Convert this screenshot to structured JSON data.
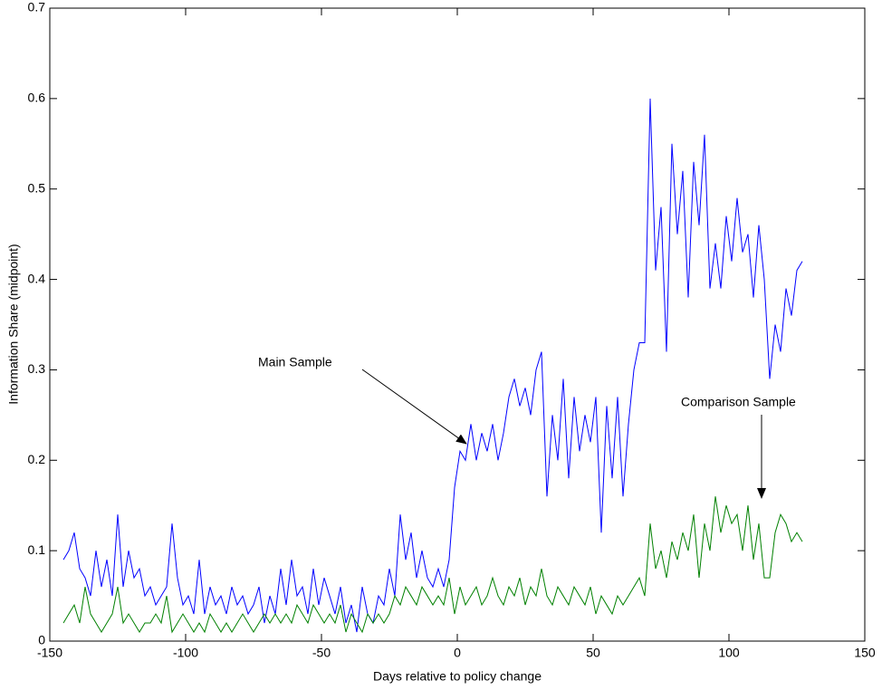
{
  "chart_data": {
    "type": "line",
    "xlabel": "Days relative to policy change",
    "ylabel": "Information Share (midpoint)",
    "annotations": [
      "Main Sample",
      "Comparison Sample"
    ],
    "x": [
      -145,
      -143,
      -141,
      -139,
      -137,
      -135,
      -133,
      -131,
      -129,
      -127,
      -125,
      -123,
      -121,
      -119,
      -117,
      -115,
      -113,
      -111,
      -109,
      -107,
      -105,
      -103,
      -101,
      -99,
      -97,
      -95,
      -93,
      -91,
      -89,
      -87,
      -85,
      -83,
      -81,
      -79,
      -77,
      -75,
      -73,
      -71,
      -69,
      -67,
      -65,
      -63,
      -61,
      -59,
      -57,
      -55,
      -53,
      -51,
      -49,
      -47,
      -45,
      -43,
      -41,
      -39,
      -37,
      -35,
      -33,
      -31,
      -29,
      -27,
      -25,
      -23,
      -21,
      -19,
      -17,
      -15,
      -13,
      -11,
      -9,
      -7,
      -5,
      -3,
      -1,
      1,
      3,
      5,
      7,
      9,
      11,
      13,
      15,
      17,
      19,
      21,
      23,
      25,
      27,
      29,
      31,
      33,
      35,
      37,
      39,
      41,
      43,
      45,
      47,
      49,
      51,
      53,
      55,
      57,
      59,
      61,
      63,
      65,
      67,
      69,
      71,
      73,
      75,
      77,
      79,
      81,
      83,
      85,
      87,
      89,
      91,
      93,
      95,
      97,
      99,
      101,
      103,
      105,
      107,
      109,
      111,
      113,
      115,
      117,
      119,
      121,
      123,
      125,
      127
    ],
    "series": [
      {
        "color": "#0000ff",
        "values": [
          0.09,
          0.1,
          0.12,
          0.08,
          0.07,
          0.05,
          0.1,
          0.06,
          0.09,
          0.05,
          0.14,
          0.06,
          0.1,
          0.07,
          0.08,
          0.05,
          0.06,
          0.04,
          0.05,
          0.06,
          0.13,
          0.07,
          0.04,
          0.05,
          0.03,
          0.09,
          0.03,
          0.06,
          0.04,
          0.05,
          0.03,
          0.06,
          0.04,
          0.05,
          0.03,
          0.04,
          0.06,
          0.02,
          0.05,
          0.03,
          0.08,
          0.04,
          0.09,
          0.05,
          0.06,
          0.03,
          0.08,
          0.04,
          0.07,
          0.05,
          0.03,
          0.06,
          0.02,
          0.04,
          0.01,
          0.06,
          0.03,
          0.02,
          0.05,
          0.04,
          0.08,
          0.05,
          0.14,
          0.09,
          0.12,
          0.07,
          0.1,
          0.07,
          0.06,
          0.08,
          0.06,
          0.09,
          0.17,
          0.21,
          0.2,
          0.24,
          0.2,
          0.23,
          0.21,
          0.24,
          0.2,
          0.23,
          0.27,
          0.29,
          0.26,
          0.28,
          0.25,
          0.3,
          0.32,
          0.16,
          0.25,
          0.2,
          0.29,
          0.18,
          0.27,
          0.21,
          0.25,
          0.22,
          0.27,
          0.12,
          0.26,
          0.18,
          0.27,
          0.16,
          0.24,
          0.3,
          0.33,
          0.33,
          0.6,
          0.41,
          0.48,
          0.32,
          0.55,
          0.45,
          0.52,
          0.38,
          0.53,
          0.46,
          0.56,
          0.39,
          0.44,
          0.39,
          0.47,
          0.42,
          0.49,
          0.43,
          0.45,
          0.38,
          0.46,
          0.4,
          0.29,
          0.35,
          0.32,
          0.39,
          0.36,
          0.41,
          0.42
        ]
      },
      {
        "color": "#008000",
        "values": [
          0.02,
          0.03,
          0.04,
          0.02,
          0.06,
          0.03,
          0.02,
          0.01,
          0.02,
          0.03,
          0.06,
          0.02,
          0.03,
          0.02,
          0.01,
          0.02,
          0.02,
          0.03,
          0.02,
          0.05,
          0.01,
          0.02,
          0.03,
          0.02,
          0.01,
          0.02,
          0.01,
          0.03,
          0.02,
          0.01,
          0.02,
          0.01,
          0.02,
          0.03,
          0.02,
          0.01,
          0.02,
          0.03,
          0.02,
          0.03,
          0.02,
          0.03,
          0.02,
          0.04,
          0.03,
          0.02,
          0.04,
          0.03,
          0.02,
          0.03,
          0.02,
          0.04,
          0.01,
          0.03,
          0.02,
          0.01,
          0.03,
          0.02,
          0.03,
          0.02,
          0.03,
          0.05,
          0.04,
          0.06,
          0.05,
          0.04,
          0.06,
          0.05,
          0.04,
          0.05,
          0.04,
          0.07,
          0.03,
          0.06,
          0.04,
          0.05,
          0.06,
          0.04,
          0.05,
          0.07,
          0.05,
          0.04,
          0.06,
          0.05,
          0.07,
          0.04,
          0.06,
          0.05,
          0.08,
          0.05,
          0.04,
          0.06,
          0.05,
          0.04,
          0.06,
          0.05,
          0.04,
          0.06,
          0.03,
          0.05,
          0.04,
          0.03,
          0.05,
          0.04,
          0.05,
          0.06,
          0.07,
          0.05,
          0.13,
          0.08,
          0.1,
          0.07,
          0.11,
          0.09,
          0.12,
          0.1,
          0.14,
          0.07,
          0.13,
          0.1,
          0.16,
          0.12,
          0.15,
          0.13,
          0.14,
          0.1,
          0.15,
          0.09,
          0.13,
          0.07,
          0.07,
          0.12,
          0.14,
          0.13,
          0.11,
          0.12,
          0.11
        ]
      }
    ],
    "xlim": [
      -150,
      150
    ],
    "xticks": [
      -150,
      -100,
      -50,
      0,
      50,
      100,
      150
    ],
    "ylim": [
      0,
      0.7
    ],
    "yticks": [
      0,
      0.1,
      0.2,
      0.3,
      0.4,
      0.5,
      0.6,
      0.7
    ],
    "grid": false
  }
}
